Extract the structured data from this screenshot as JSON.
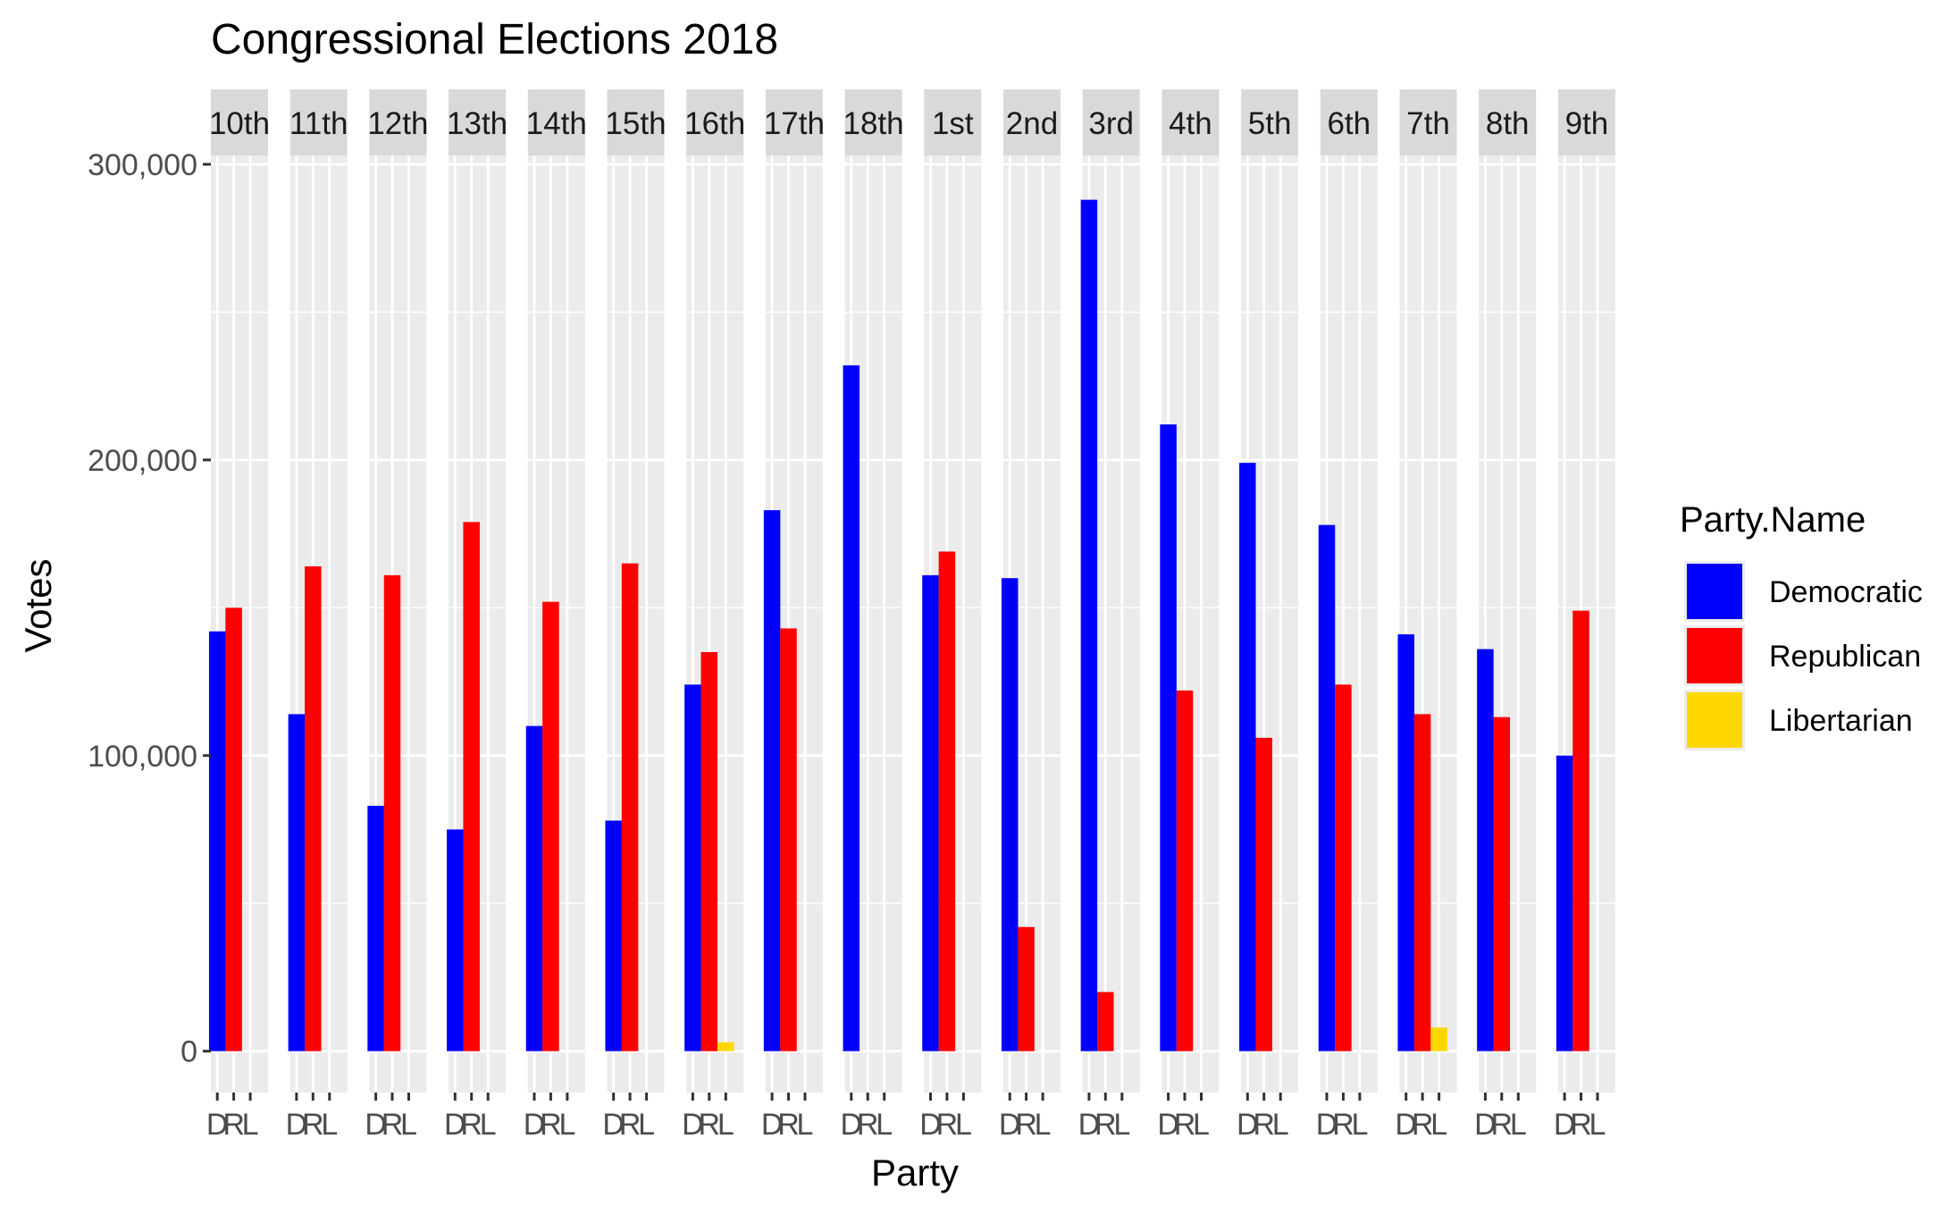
{
  "chart_data": {
    "type": "bar",
    "title": "Congressional Elections 2018",
    "xlabel": "Party",
    "ylabel": "Votes",
    "ylim": [
      -14000,
      303000
    ],
    "y_ticks": [
      0,
      100000,
      200000,
      300000
    ],
    "y_tick_labels": [
      "0",
      "100,000",
      "200,000",
      "300,000"
    ],
    "x_tick_labels": [
      "D",
      "R",
      "L"
    ],
    "facet_order": [
      "10th",
      "11th",
      "12th",
      "13th",
      "14th",
      "15th",
      "16th",
      "17th",
      "18th",
      "1st",
      "2nd",
      "3rd",
      "4th",
      "5th",
      "6th",
      "7th",
      "8th",
      "9th"
    ],
    "legend": {
      "title": "Party.Name",
      "position": "right",
      "entries": [
        {
          "name": "Democratic",
          "color": "#0000FF"
        },
        {
          "name": "Republican",
          "color": "#FF0000"
        },
        {
          "name": "Libertarian",
          "color": "#FFD700"
        }
      ]
    },
    "colors": {
      "panel_bg": "#EBEBEB",
      "strip_bg": "#D9D9D9",
      "grid": "#FFFFFF",
      "text": "#000000",
      "tick_text": "#4D4D4D"
    },
    "series": [
      {
        "name": "Democratic",
        "values": [
          142000,
          114000,
          83000,
          75000,
          110000,
          78000,
          124000,
          183000,
          232000,
          161000,
          160000,
          288000,
          212000,
          199000,
          178000,
          141000,
          136000,
          100000
        ]
      },
      {
        "name": "Republican",
        "values": [
          150000,
          164000,
          161000,
          179000,
          152000,
          165000,
          135000,
          143000,
          0,
          169000,
          42000,
          20000,
          122000,
          106000,
          124000,
          114000,
          113000,
          149000
        ]
      },
      {
        "name": "Libertarian",
        "values": [
          0,
          0,
          0,
          0,
          0,
          0,
          3000,
          0,
          0,
          0,
          0,
          0,
          0,
          0,
          0,
          8000,
          0,
          0
        ]
      }
    ]
  }
}
